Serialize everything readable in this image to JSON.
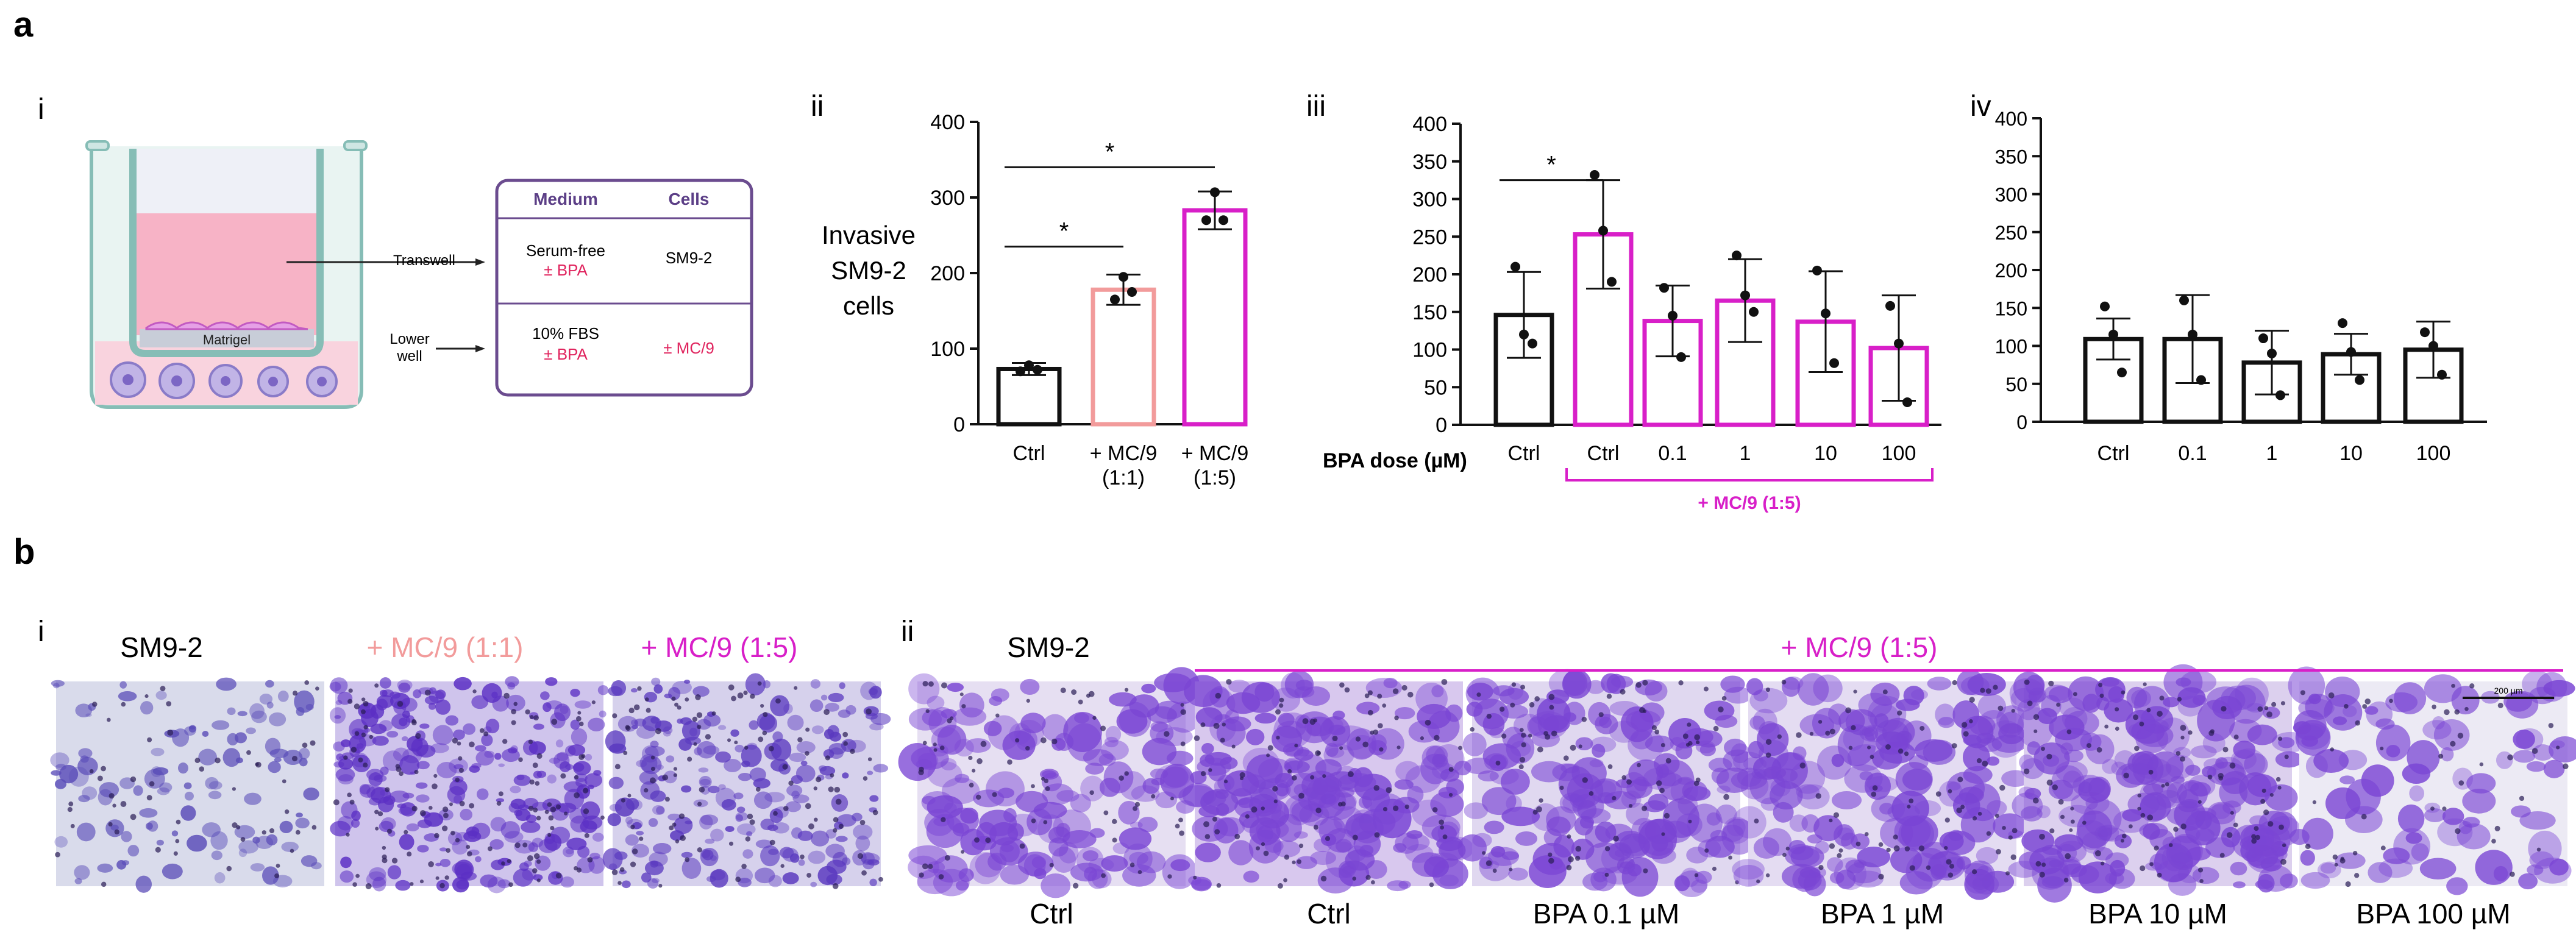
{
  "panel_labels": {
    "a": "a",
    "b": "b",
    "ai": "i",
    "aii": "ii",
    "aiii": "iii",
    "aiv": "iv",
    "bi": "i",
    "bii": "ii"
  },
  "diagram": {
    "transwell_label": "Transwell",
    "lower_well_label_1": "Lower",
    "lower_well_label_2": "well",
    "matrigel_label": "Matrigel",
    "table": {
      "headers": [
        "Medium",
        "Cells"
      ],
      "row1": {
        "medium_1": "Serum-free",
        "medium_2": "± BPA",
        "cells": "SM9-2"
      },
      "row2": {
        "medium_1": "10% FBS",
        "medium_2": "± BPA",
        "cells": "± MC/9"
      }
    },
    "colors": {
      "pink_medium": "#f7b3c6",
      "lower_medium": "#f9d3de",
      "table_border": "#6b4c8f",
      "header_text": "#5b3e86",
      "plus_minus": "#e0245e",
      "cells": "#8a7bc8"
    }
  },
  "colors": {
    "black": "#111111",
    "salmon": "#f29b9b",
    "magenta": "#d81fc8"
  },
  "chart_data": [
    {
      "id": "aii",
      "type": "bar",
      "title": "",
      "ylabel_lines": [
        "Invasive",
        "SM9-2",
        "cells"
      ],
      "ylim": [
        0,
        400
      ],
      "yticks": [
        "0",
        "100",
        "200",
        "300",
        "400"
      ],
      "categories": [
        "Ctrl",
        "+ MC/9 (1:1)",
        "+ MC/9 (1:5)"
      ],
      "category_labels": [
        [
          "Ctrl"
        ],
        [
          "+ MC/9",
          "(1:1)"
        ],
        [
          "+ MC/9",
          "(1:5)"
        ]
      ],
      "values": [
        73,
        178,
        283
      ],
      "errors": [
        8,
        20,
        25
      ],
      "points": [
        [
          70,
          78,
          72
        ],
        [
          165,
          195,
          175
        ],
        [
          270,
          307,
          270
        ]
      ],
      "bar_colors": [
        "#111111",
        "#f29b9b",
        "#d81fc8"
      ],
      "significance": [
        {
          "from": 0,
          "to": 1,
          "label": "*"
        },
        {
          "from": 0,
          "to": 2,
          "label": "*"
        }
      ]
    },
    {
      "id": "aiii",
      "type": "bar",
      "title": "",
      "xlabel": "BPA dose (µM)",
      "ylim": [
        0,
        400
      ],
      "yticks": [
        "0",
        "50",
        "100",
        "150",
        "200",
        "250",
        "300",
        "350",
        "400"
      ],
      "categories": [
        "Ctrl",
        "Ctrl",
        "0.1",
        "1",
        "10",
        "100"
      ],
      "values": [
        146,
        253,
        138,
        165,
        137,
        102
      ],
      "errors": [
        57,
        72,
        47,
        55,
        67,
        70
      ],
      "points": [
        [
          210,
          120,
          108
        ],
        [
          332,
          258,
          190
        ],
        [
          182,
          145,
          90
        ],
        [
          225,
          172,
          150
        ],
        [
          205,
          148,
          82
        ],
        [
          158,
          108,
          30
        ]
      ],
      "bar_colors": [
        "#111111",
        "#d81fc8",
        "#d81fc8",
        "#d81fc8",
        "#d81fc8",
        "#d81fc8"
      ],
      "group_label": "+ MC/9  (1:5)",
      "significance": [
        {
          "from": 0,
          "to": 1,
          "label": "*"
        }
      ]
    },
    {
      "id": "aiv",
      "type": "bar",
      "title": "",
      "ylim": [
        0,
        400
      ],
      "yticks": [
        "0",
        "50",
        "100",
        "150",
        "200",
        "250",
        "300",
        "350",
        "400"
      ],
      "categories": [
        "Ctrl",
        "0.1",
        "1",
        "10",
        "100"
      ],
      "values": [
        109,
        109,
        78,
        89,
        95
      ],
      "errors": [
        27,
        58,
        42,
        27,
        37
      ],
      "points": [
        [
          152,
          115,
          65
        ],
        [
          160,
          115,
          55
        ],
        [
          110,
          90,
          35
        ],
        [
          130,
          92,
          55
        ],
        [
          118,
          100,
          62
        ]
      ],
      "bar_colors": [
        "#111111",
        "#111111",
        "#111111",
        "#111111",
        "#111111"
      ],
      "significance": []
    }
  ],
  "micro": {
    "bi_titles": [
      "SM9-2",
      "+  MC/9 (1:1)",
      "+  MC/9 (1:5)"
    ],
    "bii_title": "SM9-2",
    "bii_group": "+  MC/9 (1:5)",
    "bii_labels": [
      "Ctrl",
      "Ctrl",
      "BPA 0.1 µM",
      "BPA 1 µM",
      "BPA 10 µM",
      "BPA 100 µM"
    ],
    "scalebar": "200 µm"
  }
}
